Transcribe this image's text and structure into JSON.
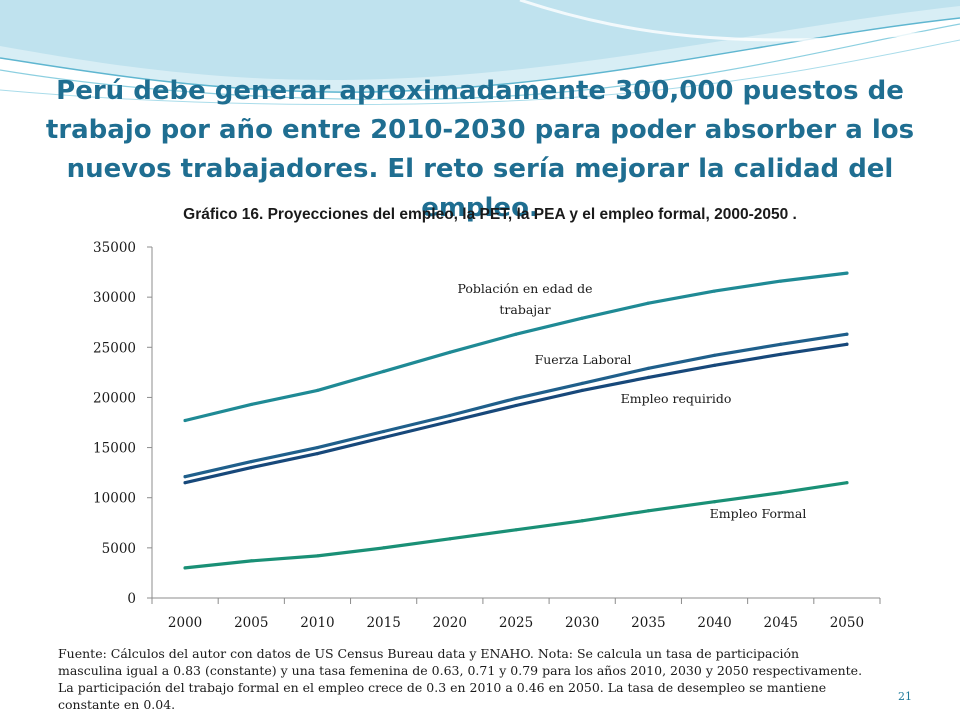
{
  "slide": {
    "title_lines": [
      "Perú debe generar aproximadamente 300,000 puestos de",
      "trabajo por año entre 2010-2030 para poder absorber a los",
      "nuevos trabajadores. El reto sería mejorar la calidad del empleo."
    ],
    "footnote_lines": [
      "Fuente: Cálculos del autor  con datos de US Census Bureau data y ENAHO.  Nota:  Se calcula un  tasa de participación",
      "masculina igual a 0.83 (constante) y una tasa femenina de 0.63, 0.71 y 0.79 para los años 2010, 2030 y 2050 respectivamente.",
      "La participación del trabajo formal en el empleo crece de 0.3 en 2010 a 0.46 en 2050. La tasa de desempleo se mantiene",
      "constante en 0.04."
    ],
    "page_number": "21"
  },
  "chart_data": {
    "type": "line",
    "title": "Gráfico 16. Proyecciones del empleo, la PET, la PEA y el empleo formal, 2000-2050 .",
    "categories": [
      "2000",
      "2005",
      "2010",
      "2015",
      "2020",
      "2025",
      "2030",
      "2035",
      "2040",
      "2045",
      "2050"
    ],
    "ylim": [
      0,
      35000
    ],
    "yticks": [
      "0",
      "5000",
      "10000",
      "15000",
      "20000",
      "25000",
      "30000",
      "35000"
    ],
    "grid": false,
    "series": [
      {
        "name": "Población en edad de trabajar",
        "label_lines": [
          "Población en edad de",
          "trabajar"
        ],
        "color": "#1f8a95",
        "values": [
          17700,
          19300,
          20700,
          22600,
          24500,
          26300,
          27900,
          29400,
          30600,
          31600,
          32400
        ]
      },
      {
        "name": "Fuerza Laboral",
        "label_lines": [
          "Fuerza Laboral"
        ],
        "color": "#1f5f8b",
        "values": [
          12100,
          13600,
          15000,
          16600,
          18200,
          19900,
          21400,
          22900,
          24200,
          25300,
          26300
        ]
      },
      {
        "name": "Empleo requirido",
        "label_lines": [
          "Empleo requirido"
        ],
        "color": "#17487a",
        "values": [
          11500,
          13000,
          14400,
          16000,
          17600,
          19200,
          20700,
          22000,
          23200,
          24300,
          25300
        ]
      },
      {
        "name": "Empleo Formal",
        "label_lines": [
          "Empleo Formal"
        ],
        "color": "#1a9076",
        "values": [
          3000,
          3700,
          4200,
          5000,
          5900,
          6800,
          7700,
          8700,
          9600,
          10500,
          11500
        ]
      }
    ]
  }
}
